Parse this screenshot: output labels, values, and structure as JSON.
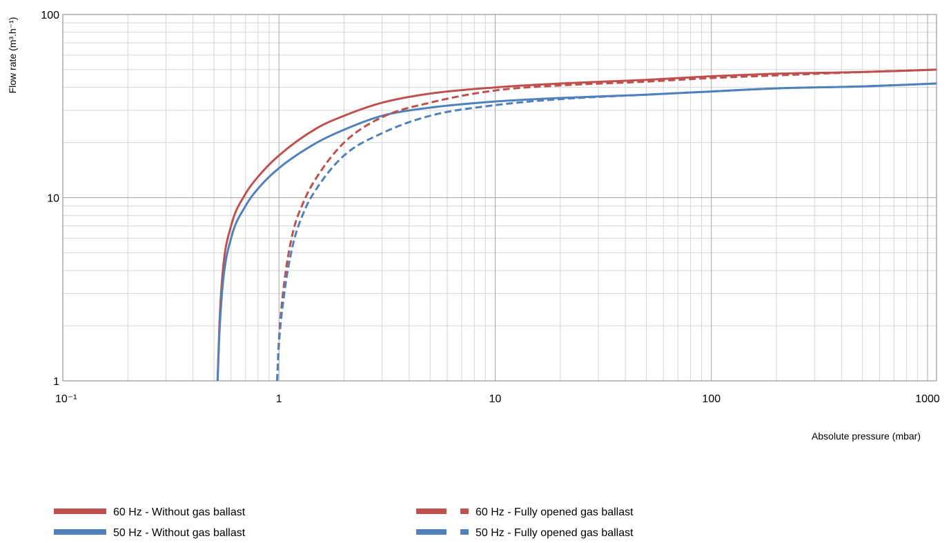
{
  "chart_data": {
    "type": "line",
    "title": "",
    "xlabel": "Absolute pressure (mbar)",
    "ylabel": "Flow rate  (m³.h⁻¹)",
    "xscale": "log",
    "yscale": "log",
    "xlim": [
      0.1,
      1100
    ],
    "ylim": [
      1,
      100
    ],
    "grid": true,
    "legend_position": "bottom",
    "x_ticks": [
      "10⁻¹",
      "1",
      "10",
      "100",
      "1000"
    ],
    "y_ticks": [
      "1",
      "10",
      "100"
    ],
    "series": [
      {
        "name": "60 Hz - Without gas ballast",
        "color": "#c0504d",
        "dash": "solid",
        "x": [
          0.52,
          0.53,
          0.55,
          0.6,
          0.7,
          0.8,
          1,
          1.5,
          2,
          3,
          5,
          10,
          20,
          50,
          100,
          200,
          500,
          1100
        ],
        "y": [
          1,
          2,
          4,
          7,
          10.5,
          13,
          17,
          24,
          28,
          33,
          37,
          40,
          42,
          44,
          46,
          47.5,
          48.5,
          50
        ]
      },
      {
        "name": "50 Hz - Without gas ballast",
        "color": "#4f81bd",
        "dash": "solid",
        "x": [
          0.52,
          0.53,
          0.55,
          0.6,
          0.7,
          0.8,
          1,
          1.5,
          2,
          3,
          5,
          10,
          20,
          50,
          100,
          200,
          500,
          1100
        ],
        "y": [
          1,
          1.8,
          3.4,
          6,
          9,
          11.2,
          14.5,
          20,
          23.5,
          28,
          31,
          33.5,
          35,
          36.5,
          38,
          39.5,
          40.5,
          42
        ]
      },
      {
        "name": "60 Hz - Fully opened gas ballast",
        "color": "#c0504d",
        "dash": "dashed",
        "x": [
          0.98,
          1.0,
          1.05,
          1.15,
          1.3,
          1.5,
          2,
          3,
          5,
          10,
          20,
          50,
          100,
          200,
          500,
          1100
        ],
        "y": [
          1,
          1.7,
          3.2,
          6.2,
          9.5,
          13,
          20,
          27.5,
          33,
          38.5,
          41,
          43,
          45,
          46.5,
          48.5,
          50
        ]
      },
      {
        "name": "50 Hz - Fully opened gas ballast",
        "color": "#4f81bd",
        "dash": "dashed",
        "x": [
          0.98,
          1.0,
          1.05,
          1.15,
          1.3,
          1.5,
          2,
          3,
          5,
          10,
          20,
          50,
          100,
          200,
          500,
          1100
        ],
        "y": [
          1,
          1.6,
          2.8,
          5.3,
          8.3,
          11.3,
          17,
          22.5,
          28,
          32,
          34.5,
          36.5,
          38,
          39.5,
          40.5,
          42
        ]
      }
    ]
  }
}
